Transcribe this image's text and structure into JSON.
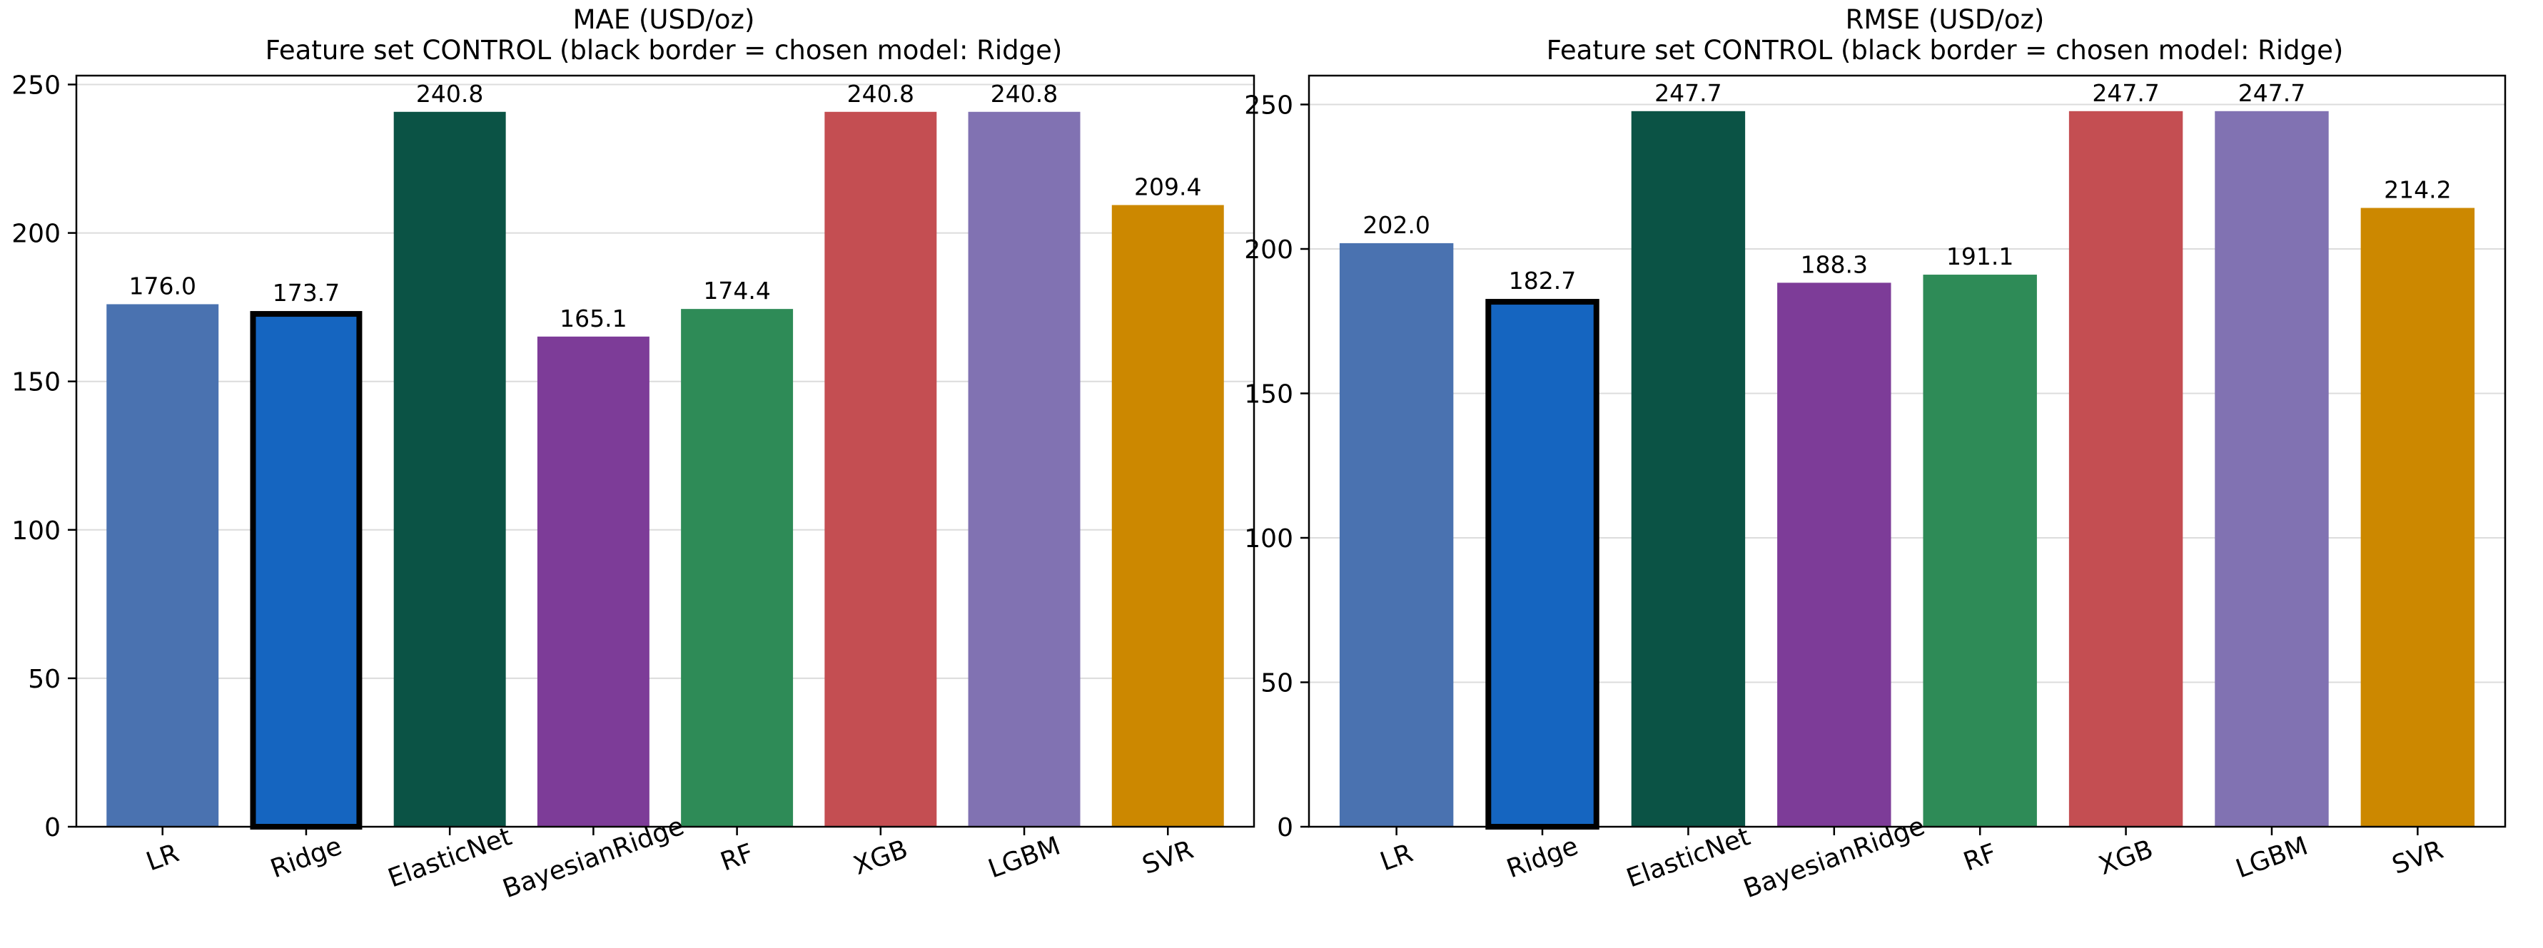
{
  "chart_data": [
    {
      "type": "bar",
      "title": "MAE (USD/oz)",
      "subtitle": "Feature set CONTROL (black border = chosen model: Ridge)",
      "xlabel": "",
      "ylabel": "",
      "categories": [
        "LR",
        "Ridge",
        "ElasticNet",
        "BayesianRidge",
        "RF",
        "XGB",
        "LGBM",
        "SVR"
      ],
      "values": [
        176.0,
        173.7,
        240.8,
        165.1,
        174.4,
        240.8,
        240.8,
        209.4
      ],
      "value_labels": [
        "176.0",
        "173.7",
        "240.8",
        "165.1",
        "174.4",
        "240.8",
        "240.8",
        "209.4"
      ],
      "colors": [
        "#4a72b0",
        "#1565c0",
        "#0b5345",
        "#7d3c98",
        "#2e8b57",
        "#c44e52",
        "#8172b2",
        "#cc8800"
      ],
      "highlight": "Ridge",
      "ylim": [
        0,
        253
      ],
      "yticks": [
        0,
        50,
        100,
        150,
        200,
        250
      ],
      "grid": "horizontal"
    },
    {
      "type": "bar",
      "title": "RMSE (USD/oz)",
      "subtitle": "Feature set CONTROL (black border = chosen model: Ridge)",
      "xlabel": "",
      "ylabel": "",
      "categories": [
        "LR",
        "Ridge",
        "ElasticNet",
        "BayesianRidge",
        "RF",
        "XGB",
        "LGBM",
        "SVR"
      ],
      "values": [
        202.0,
        182.7,
        247.7,
        188.3,
        191.1,
        247.7,
        247.7,
        214.2
      ],
      "value_labels": [
        "202.0",
        "182.7",
        "247.7",
        "188.3",
        "191.1",
        "247.7",
        "247.7",
        "214.2"
      ],
      "colors": [
        "#4a72b0",
        "#1565c0",
        "#0b5345",
        "#7d3c98",
        "#2e8b57",
        "#c44e52",
        "#8172b2",
        "#cc8800"
      ],
      "highlight": "Ridge",
      "ylim": [
        0,
        260
      ],
      "yticks": [
        0,
        50,
        100,
        150,
        200,
        250
      ],
      "grid": "horizontal"
    }
  ]
}
